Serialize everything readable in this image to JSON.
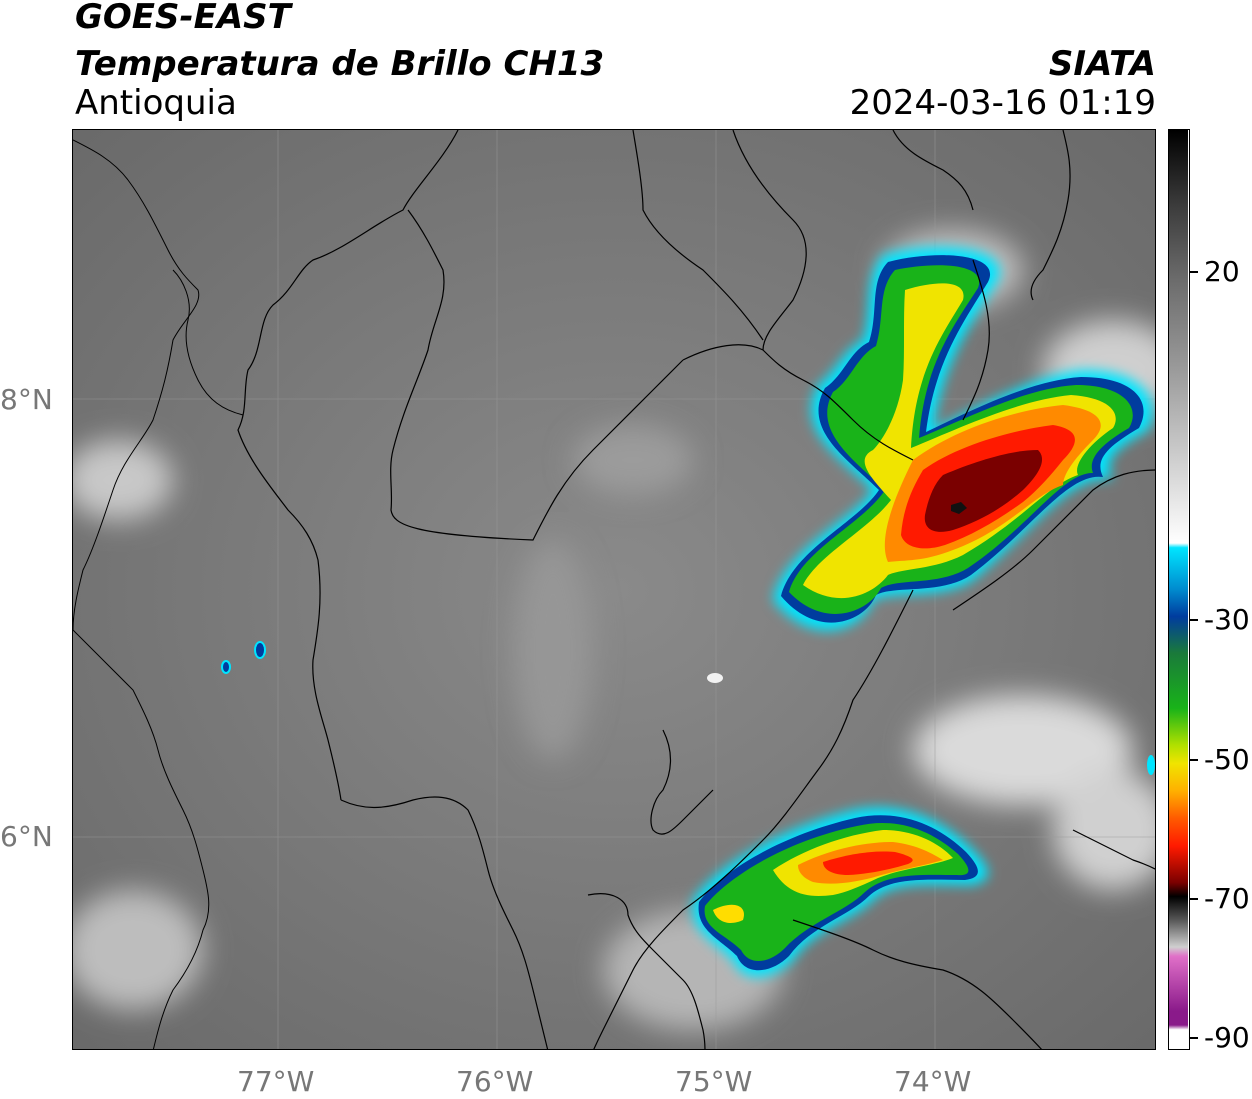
{
  "header": {
    "satellite": "GOES-EAST",
    "product": "Temperatura de Brillo CH13",
    "region": "Antioquia",
    "agency": "SIATA",
    "datetime": "2024-03-16 01:19"
  },
  "axes": {
    "lat_labels": [
      "8°N",
      "6°N"
    ],
    "lon_labels": [
      "77°W",
      "76°W",
      "75°W",
      "74°W"
    ]
  },
  "colorbar": {
    "tick_labels": [
      "20",
      "-30",
      "-50",
      "-70",
      "-90"
    ],
    "colors": {
      "warm_gray": "#7a7a7a",
      "light_gray": "#d8d8d8",
      "cyan": "#00e5ff",
      "blue": "#003c9e",
      "green": "#19b319",
      "yellow": "#f0e400",
      "orange": "#ff8a00",
      "red": "#ff1a00",
      "dark_red": "#7a0000",
      "black": "#000000",
      "pink": "#e060c0",
      "purple": "#8a1a8a"
    }
  }
}
